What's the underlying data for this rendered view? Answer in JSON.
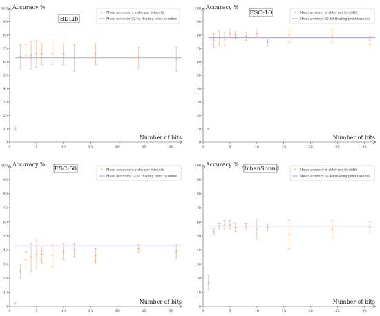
{
  "chart_data": [
    {
      "type": "scatter",
      "title": "BDLib",
      "xlabel": "Number of bits",
      "ylabel": "Accuracy %",
      "xlim": [
        0,
        32
      ],
      "ylim": [
        0,
        100
      ],
      "xticks": [
        "0",
        "5",
        "10",
        "15",
        "20",
        "25",
        "30"
      ],
      "yticks": [
        "0",
        "10",
        "20",
        "30",
        "40",
        "50",
        "60",
        "70",
        "80",
        "90",
        "100"
      ],
      "grid": false,
      "legend_position": "top-right",
      "legend": [
        "Mean accuracy ± stdev per bitwidth",
        "Mean accuracy 32-bit floating point baseline"
      ],
      "baseline": 63,
      "points": [
        {
          "x": 1,
          "y": 10,
          "err": 1.5
        },
        {
          "x": 2,
          "y": 64,
          "err": 9
        },
        {
          "x": 3,
          "y": 65,
          "err": 8
        },
        {
          "x": 4,
          "y": 65,
          "err": 10
        },
        {
          "x": 5,
          "y": 66,
          "err": 10
        },
        {
          "x": 6,
          "y": 66,
          "err": 8
        },
        {
          "x": 8,
          "y": 66,
          "err": 8
        },
        {
          "x": 10,
          "y": 66,
          "err": 8
        },
        {
          "x": 12,
          "y": 63,
          "err": 10
        },
        {
          "x": 16,
          "y": 66,
          "err": 8
        },
        {
          "x": 24,
          "y": 63,
          "err": 8
        },
        {
          "x": 31,
          "y": 62,
          "err": 9
        }
      ]
    },
    {
      "type": "scatter",
      "title": "ESC-10",
      "xlabel": "Number of bits",
      "ylabel": "Accuracy %",
      "xlim": [
        0,
        32
      ],
      "ylim": [
        0,
        100
      ],
      "xticks": [
        "0",
        "5",
        "10",
        "15",
        "20",
        "25",
        "30"
      ],
      "yticks": [
        "0",
        "10",
        "20",
        "30",
        "40",
        "50",
        "60",
        "70",
        "80",
        "90",
        "100"
      ],
      "grid": false,
      "legend_position": "top-right",
      "legend": [
        "Mean accuracy ± stdev per bitwidth",
        "Mean accuracy 32-bit floating point baseline"
      ],
      "baseline": 78,
      "points": [
        {
          "x": 1,
          "y": 10,
          "err": 0.5
        },
        {
          "x": 2,
          "y": 76,
          "err": 5
        },
        {
          "x": 3,
          "y": 78,
          "err": 5
        },
        {
          "x": 4,
          "y": 77,
          "err": 5
        },
        {
          "x": 5,
          "y": 81,
          "err": 3
        },
        {
          "x": 6,
          "y": 80,
          "err": 2.5
        },
        {
          "x": 8,
          "y": 79,
          "err": 3
        },
        {
          "x": 10,
          "y": 81,
          "err": 3
        },
        {
          "x": 12,
          "y": 75,
          "err": 3
        },
        {
          "x": 16,
          "y": 80,
          "err": 5
        },
        {
          "x": 24,
          "y": 79,
          "err": 5
        },
        {
          "x": 31,
          "y": 76,
          "err": 3
        }
      ]
    },
    {
      "type": "scatter",
      "title": "ESC-50",
      "xlabel": "Number of bits",
      "ylabel": "Accuracy %",
      "xlim": [
        0,
        32
      ],
      "ylim": [
        0,
        100
      ],
      "xticks": [
        "0",
        "5",
        "10",
        "15",
        "20",
        "25",
        "30"
      ],
      "yticks": [
        "0",
        "10",
        "20",
        "30",
        "40",
        "50",
        "60",
        "70",
        "80",
        "90",
        "100"
      ],
      "grid": false,
      "legend_position": "top-right",
      "legend": [
        "Mean accuracy ± stdev per bitwidth",
        "Mean accuracy 32-bit floating point baseline"
      ],
      "baseline": 43,
      "points": [
        {
          "x": 1,
          "y": 2,
          "err": 0.5
        },
        {
          "x": 2,
          "y": 25,
          "err": 5
        },
        {
          "x": 3,
          "y": 33,
          "err": 6
        },
        {
          "x": 4,
          "y": 35,
          "err": 10
        },
        {
          "x": 5,
          "y": 37,
          "err": 10
        },
        {
          "x": 6,
          "y": 37,
          "err": 6
        },
        {
          "x": 8,
          "y": 36,
          "err": 8
        },
        {
          "x": 10,
          "y": 39,
          "err": 6
        },
        {
          "x": 12,
          "y": 40,
          "err": 5
        },
        {
          "x": 16,
          "y": 36,
          "err": 5
        },
        {
          "x": 24,
          "y": 41,
          "err": 3
        },
        {
          "x": 31,
          "y": 39,
          "err": 5
        }
      ]
    },
    {
      "type": "scatter",
      "title": "UrbanSound",
      "xlabel": "Number of bits",
      "ylabel": "Accuracy %",
      "xlim": [
        0,
        32
      ],
      "ylim": [
        0,
        100
      ],
      "xticks": [
        "0",
        "5",
        "10",
        "15",
        "20",
        "25",
        "30"
      ],
      "yticks": [
        "0",
        "10",
        "20",
        "30",
        "40",
        "50",
        "60",
        "70",
        "80",
        "90",
        "100"
      ],
      "grid": false,
      "legend_position": "top-right",
      "legend": [
        "Mean accuracy ± stdev per bitwidth",
        "Mean accuracy 32-bit floating point baseline"
      ],
      "baseline": 57,
      "points": [
        {
          "x": 1,
          "y": 17,
          "err": 5
        },
        {
          "x": 2,
          "y": 53,
          "err": 2
        },
        {
          "x": 3,
          "y": 57,
          "err": 2
        },
        {
          "x": 4,
          "y": 58,
          "err": 3
        },
        {
          "x": 5,
          "y": 58,
          "err": 3
        },
        {
          "x": 6,
          "y": 56,
          "err": 3
        },
        {
          "x": 8,
          "y": 57,
          "err": 2
        },
        {
          "x": 10,
          "y": 55,
          "err": 7
        },
        {
          "x": 12,
          "y": 56,
          "err": 2
        },
        {
          "x": 16,
          "y": 51,
          "err": 10
        },
        {
          "x": 24,
          "y": 55,
          "err": 6
        },
        {
          "x": 31,
          "y": 56,
          "err": 4
        }
      ]
    }
  ],
  "colors": {
    "point": "#f5b183",
    "baseline": "#8a8ad8",
    "axis": "#555555"
  }
}
